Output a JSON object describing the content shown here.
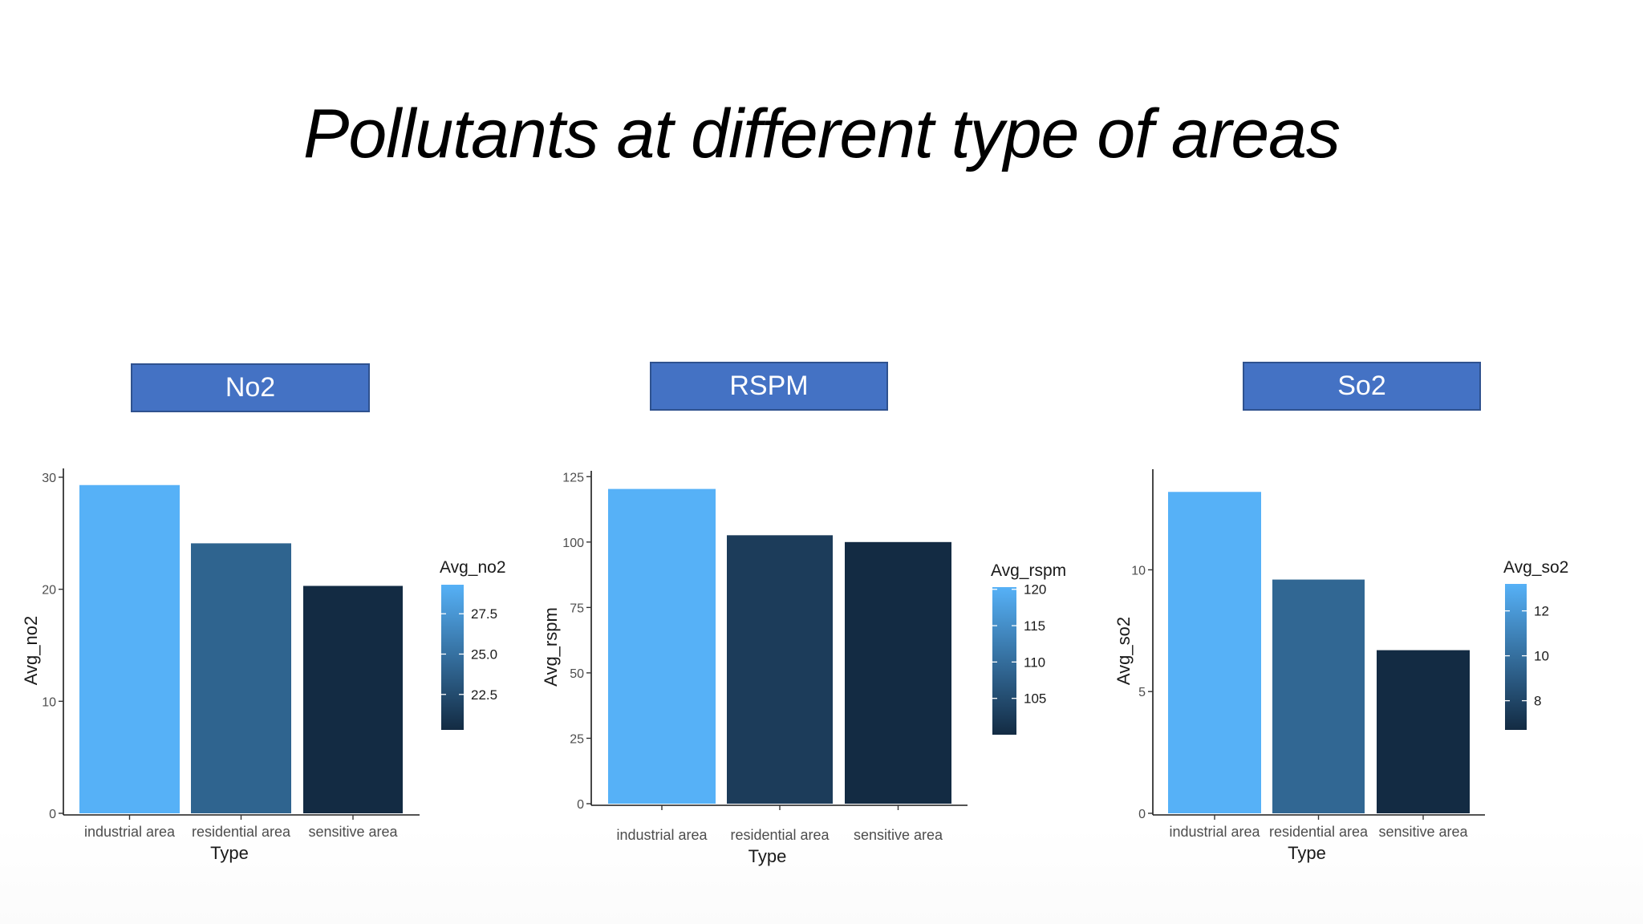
{
  "slide": {
    "title": "Pollutants at different type of areas"
  },
  "panels": [
    {
      "label": "No2"
    },
    {
      "label": "RSPM"
    },
    {
      "label": "So2"
    }
  ],
  "chart_data": [
    {
      "type": "bar",
      "title": "No2",
      "categories": [
        "industrial area",
        "residential area",
        "sensitive area"
      ],
      "values": [
        29.3,
        24.1,
        20.3
      ],
      "xlabel": "Type",
      "ylabel": "Avg_no2",
      "ylim": [
        0,
        30.5
      ],
      "yticks": [
        0,
        10,
        20,
        30
      ],
      "grid": false,
      "legend": {
        "title": "Avg_no2",
        "position": "right",
        "breaks": [
          27.5,
          25.0,
          22.5
        ],
        "break_labels": [
          "27.5",
          "25.0",
          "22.5"
        ],
        "range": [
          20.3,
          29.3
        ]
      },
      "colors": {
        "low": "#132b43",
        "high": "#56b1f7"
      }
    },
    {
      "type": "bar",
      "title": "RSPM",
      "categories": [
        "industrial area",
        "residential area",
        "sensitive area"
      ],
      "values": [
        120.3,
        102.6,
        100.0
      ],
      "xlabel": "Type",
      "ylabel": "Avg_rspm",
      "ylim": [
        0,
        126
      ],
      "yticks": [
        0,
        25,
        50,
        75,
        100,
        125
      ],
      "grid": false,
      "legend": {
        "title": "Avg_rspm",
        "position": "right",
        "breaks": [
          120,
          115,
          110,
          105
        ],
        "break_labels": [
          "120",
          "115",
          "110",
          "105"
        ],
        "range": [
          100.0,
          120.3
        ]
      },
      "colors": {
        "low": "#132b43",
        "high": "#56b1f7"
      }
    },
    {
      "type": "bar",
      "title": "So2",
      "categories": [
        "industrial area",
        "residential area",
        "sensitive area"
      ],
      "values": [
        13.2,
        9.6,
        6.7
      ],
      "xlabel": "Type",
      "ylabel": "Avg_so2",
      "ylim": [
        0,
        14
      ],
      "yticks": [
        0,
        5,
        10
      ],
      "grid": false,
      "legend": {
        "title": "Avg_so2",
        "position": "right",
        "breaks": [
          12,
          10,
          8
        ],
        "break_labels": [
          "12",
          "10",
          "8"
        ],
        "range": [
          6.7,
          13.2
        ]
      },
      "colors": {
        "low": "#132b43",
        "high": "#56b1f7"
      }
    }
  ]
}
